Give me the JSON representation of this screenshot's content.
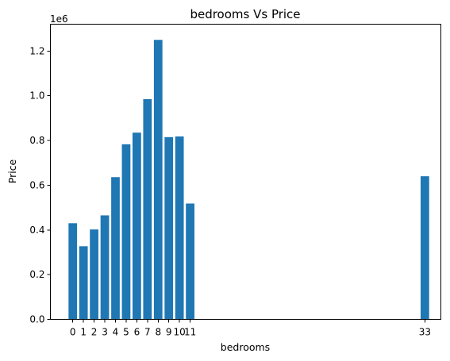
{
  "chart_data": {
    "type": "bar",
    "title": "bedrooms Vs Price",
    "xlabel": "bedrooms",
    "ylabel": "Price",
    "y_offset_label": "1e6",
    "bar_color": "#1f77b4",
    "grid": false,
    "legend": "none",
    "x": [
      0,
      1,
      2,
      3,
      4,
      5,
      6,
      7,
      8,
      9,
      10,
      11,
      33
    ],
    "values": [
      430000,
      327000,
      402000,
      465000,
      636000,
      783000,
      835000,
      985000,
      1250000,
      815000,
      818000,
      518000,
      640000
    ],
    "xticks": [
      0,
      1,
      2,
      3,
      4,
      5,
      6,
      7,
      8,
      9,
      10,
      11,
      33
    ],
    "xtick_labels": [
      "0",
      "1",
      "2",
      "3",
      "4",
      "5",
      "6",
      "7",
      "8",
      "9",
      "10",
      "11",
      "33"
    ],
    "xlim": [
      -2.1,
      34.5
    ],
    "ylim": [
      0,
      1320000
    ],
    "yticks": [
      0,
      200000,
      400000,
      600000,
      800000,
      1000000,
      1200000
    ],
    "ytick_labels": [
      "0.0",
      "0.2",
      "0.4",
      "0.6",
      "0.8",
      "1.0",
      "1.2"
    ]
  }
}
